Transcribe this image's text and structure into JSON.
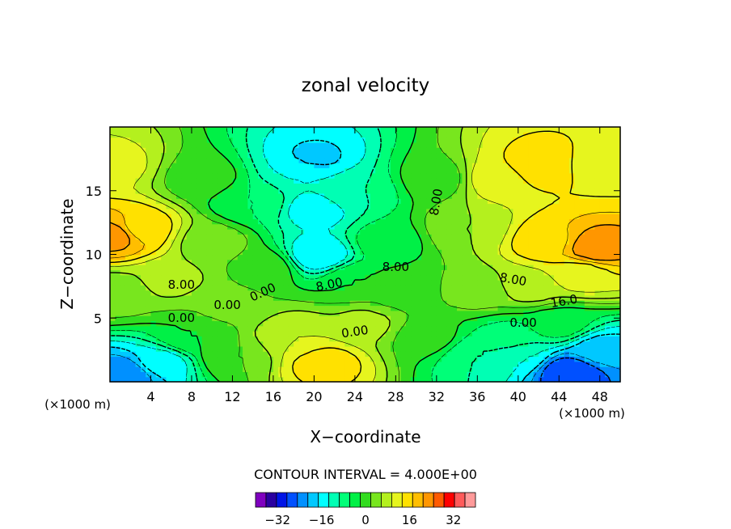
{
  "chart_data": {
    "type": "heatmap",
    "title": "zonal velocity",
    "xlabel": "X−coordinate",
    "ylabel": "Z−coordinate",
    "x_unit_left": "(×1000 m)",
    "x_unit_right": "(×1000 m)",
    "xlim": [
      0,
      50
    ],
    "ylim": [
      0,
      20
    ],
    "x_ticks": [
      "4",
      "8",
      "12",
      "16",
      "20",
      "24",
      "28",
      "32",
      "36",
      "40",
      "44",
      "48"
    ],
    "y_ticks": [
      "5",
      "10",
      "15"
    ],
    "contour_interval_text": "CONTOUR INTERVAL = 4.000E+00",
    "contour_labels": [
      "8.00",
      "0.00",
      "0.00",
      "8.00",
      "0.00",
      "8.00",
      "8.00",
      "0.00",
      "16.0",
      "0.00",
      "8.00"
    ],
    "colorbar": {
      "levels": [
        -40,
        -36,
        -32,
        -28,
        -24,
        -20,
        -16,
        -12,
        -8,
        -4,
        0,
        4,
        8,
        12,
        16,
        20,
        24,
        28,
        32,
        36,
        40
      ],
      "colors": [
        "#7f00bf",
        "#2a00a0",
        "#0014e6",
        "#0050ff",
        "#0090ff",
        "#00c8ff",
        "#00ffff",
        "#00ffb4",
        "#00ff78",
        "#00f046",
        "#32dc1e",
        "#78e61e",
        "#b4f01e",
        "#e6f51e",
        "#ffe100",
        "#ffbe00",
        "#ff9600",
        "#ff5a00",
        "#ff0000",
        "#ff5a5a",
        "#ff9a9a"
      ],
      "tick_labels": [
        "−32",
        "−16",
        "0",
        "16",
        "32"
      ],
      "tick_values": [
        -32,
        -16,
        0,
        16,
        32
      ]
    },
    "features": [
      {
        "x": 0.5,
        "z": 11.5,
        "u": 26
      },
      {
        "x": 3.0,
        "z": 12.0,
        "u": 18
      },
      {
        "x": 0.5,
        "z": 17.0,
        "u": 13
      },
      {
        "x": 0.5,
        "z": 7.0,
        "u": 6
      },
      {
        "x": 1.5,
        "z": 0.6,
        "u": -24
      },
      {
        "x": 5.0,
        "z": 1.5,
        "u": -14
      },
      {
        "x": 8.0,
        "z": 3.5,
        "u": 0
      },
      {
        "x": 9.0,
        "z": 16.0,
        "u": 2
      },
      {
        "x": 14.0,
        "z": 14.0,
        "u": -4
      },
      {
        "x": 11.5,
        "z": 6.0,
        "u": 5
      },
      {
        "x": 19.0,
        "z": 16.5,
        "u": -12
      },
      {
        "x": 20.0,
        "z": 17.5,
        "u": -17
      },
      {
        "x": 20.5,
        "z": 10.0,
        "u": -16
      },
      {
        "x": 20.0,
        "z": 13.5,
        "u": -14
      },
      {
        "x": 24.0,
        "z": 15.0,
        "u": -8
      },
      {
        "x": 27.0,
        "z": 11.0,
        "u": -2
      },
      {
        "x": 24.0,
        "z": 8.0,
        "u": 0
      },
      {
        "x": 21.0,
        "z": 1.5,
        "u": 18
      },
      {
        "x": 18.0,
        "z": 3.5,
        "u": 12
      },
      {
        "x": 25.0,
        "z": 4.5,
        "u": 9
      },
      {
        "x": 31.0,
        "z": 3.5,
        "u": 2
      },
      {
        "x": 32.0,
        "z": 16.0,
        "u": 2
      },
      {
        "x": 35.0,
        "z": 12.0,
        "u": 8
      },
      {
        "x": 38.0,
        "z": 16.0,
        "u": 15
      },
      {
        "x": 42.0,
        "z": 17.0,
        "u": 18
      },
      {
        "x": 48.0,
        "z": 17.0,
        "u": 15
      },
      {
        "x": 43.0,
        "z": 11.0,
        "u": 19
      },
      {
        "x": 47.5,
        "z": 10.5,
        "u": 27
      },
      {
        "x": 46.0,
        "z": 8.5,
        "u": 14
      },
      {
        "x": 41.0,
        "z": 7.5,
        "u": 10
      },
      {
        "x": 36.0,
        "z": 7.0,
        "u": 5
      },
      {
        "x": 36.0,
        "z": 2.0,
        "u": -8
      },
      {
        "x": 39.0,
        "z": 3.5,
        "u": -5
      },
      {
        "x": 40.0,
        "z": 2.0,
        "u": -12
      },
      {
        "x": 45.0,
        "z": 0.8,
        "u": -28
      },
      {
        "x": 48.0,
        "z": 2.5,
        "u": -18
      },
      {
        "x": 44.0,
        "z": 4.5,
        "u": -2
      },
      {
        "x": 12.0,
        "z": 2.0,
        "u": 4
      },
      {
        "x": 15.0,
        "z": 9.0,
        "u": 3
      },
      {
        "x": 6.0,
        "z": 8.0,
        "u": 9
      },
      {
        "x": 28.5,
        "z": 7.0,
        "u": 3
      },
      {
        "x": 10.0,
        "z": 11.0,
        "u": 6
      }
    ]
  }
}
